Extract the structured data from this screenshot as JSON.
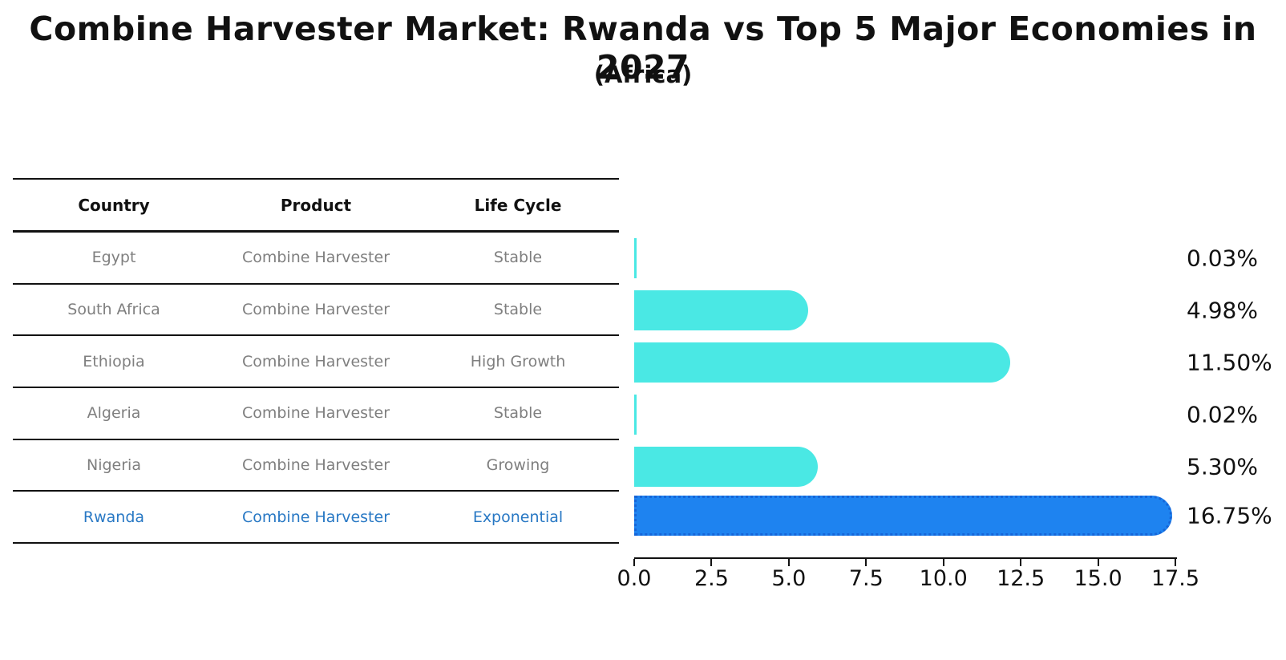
{
  "title": "Combine Harvester Market: Rwanda vs Top 5 Major Economies in 2027",
  "subtitle": "(Africa)",
  "table": {
    "headers": [
      "Country",
      "Product",
      "Life Cycle"
    ],
    "rows": [
      {
        "country": "Egypt",
        "product": "Combine Harvester",
        "life_cycle": "Stable"
      },
      {
        "country": "South Africa",
        "product": "Combine Harvester",
        "life_cycle": "Stable"
      },
      {
        "country": "Ethiopia",
        "product": "Combine Harvester",
        "life_cycle": "High Growth"
      },
      {
        "country": "Algeria",
        "product": "Combine Harvester",
        "life_cycle": "Stable"
      },
      {
        "country": "Nigeria",
        "product": "Combine Harvester",
        "life_cycle": "Growing"
      },
      {
        "country": "Rwanda",
        "product": "Combine Harvester",
        "life_cycle": "Exponential"
      }
    ],
    "highlight_row": 5
  },
  "chart_data": {
    "type": "bar",
    "orientation": "horizontal",
    "categories": [
      "Egypt",
      "South Africa",
      "Ethiopia",
      "Algeria",
      "Nigeria",
      "Rwanda"
    ],
    "values": [
      0.03,
      4.98,
      11.5,
      0.02,
      5.3,
      16.75
    ],
    "value_labels": [
      "0.03%",
      "4.98%",
      "11.50%",
      "0.02%",
      "5.30%",
      "16.75%"
    ],
    "xlim": [
      0,
      17.5
    ],
    "xticks": [
      0.0,
      2.5,
      5.0,
      7.5,
      10.0,
      12.5,
      15.0,
      17.5
    ],
    "xtick_labels": [
      "0.0",
      "2.5",
      "5.0",
      "7.5",
      "10.0",
      "12.5",
      "15.0",
      "17.5"
    ],
    "grid": false,
    "legend": null,
    "bar_color": "#4AE8E4",
    "highlight_color": "#1E83F0",
    "highlight_index": 5,
    "title": "Combine Harvester Market: Rwanda vs Top 5 Major Economies in 2027",
    "subtitle": "(Africa)"
  },
  "colors": {
    "bar": "#4AE8E4",
    "highlight_bar": "#1E83F0",
    "highlight_text": "#2878C4",
    "row_text": "#7f7f7f",
    "axis_text": "#111111"
  }
}
